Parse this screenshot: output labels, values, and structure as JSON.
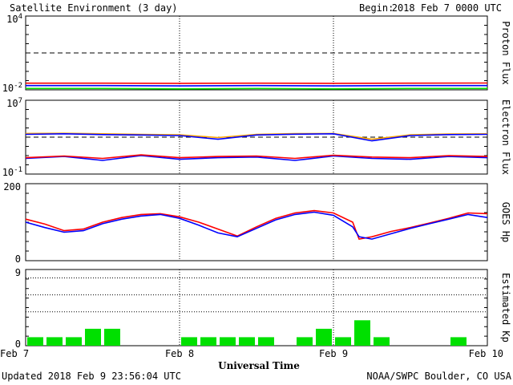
{
  "header": {
    "title": "Satellite Environment (3 day)",
    "begin_label": "Begin:",
    "begin_value": "2018 Feb 7 0000 UTC"
  },
  "footer": {
    "updated": "Updated 2018 Feb  9 23:56:04 UTC",
    "credit": "NOAA/SWPC Boulder, CO USA"
  },
  "chart_data": [
    {
      "type": "line",
      "title": "",
      "ylabel": "Proton Flux",
      "y_scale": "log",
      "ylim": [
        0.01,
        10000
      ],
      "y_tick_labels": [
        {
          "base": "10",
          "exp": "4"
        },
        {
          "base": "10",
          "exp": "-2"
        }
      ],
      "threshold": 10,
      "x": [
        0,
        12,
        24,
        36,
        48,
        60,
        72
      ],
      "series": [
        {
          "color": "#ff0000",
          "values": [
            0.035,
            0.035,
            0.034,
            0.035,
            0.034,
            0.035,
            0.036
          ]
        },
        {
          "color": "#0000ff",
          "values": [
            0.022,
            0.022,
            0.021,
            0.022,
            0.021,
            0.022,
            0.022
          ]
        },
        {
          "color": "#00e000",
          "values": [
            0.013,
            0.013,
            0.012,
            0.013,
            0.012,
            0.013,
            0.013
          ]
        }
      ]
    },
    {
      "type": "line",
      "title": "",
      "ylabel": "Electron Flux",
      "y_scale": "log",
      "ylim": [
        0.1,
        10000000
      ],
      "y_tick_labels": [
        {
          "base": "10",
          "exp": "7"
        },
        {
          "base": "10",
          "exp": "-1"
        }
      ],
      "threshold": 1000,
      "x": [
        0,
        6,
        12,
        18,
        24,
        30,
        36,
        42,
        48,
        54,
        60,
        66,
        72
      ],
      "series": [
        {
          "color": "#ffa500",
          "values": [
            2500,
            2600,
            2300,
            2000,
            1800,
            900,
            2000,
            2400,
            2500,
            600,
            1800,
            2200,
            2300
          ]
        },
        {
          "color": "#0000ff",
          "values": [
            2000,
            2300,
            1900,
            1700,
            1500,
            600,
            1700,
            2100,
            2300,
            400,
            1500,
            1900,
            2000
          ]
        },
        {
          "color": "#0000ff",
          "values": [
            5,
            8,
            3,
            10,
            4,
            6,
            7,
            3,
            9,
            5,
            4,
            8,
            6
          ]
        },
        {
          "color": "#ff0000",
          "values": [
            6,
            9,
            5,
            12,
            6,
            8,
            9,
            5,
            11,
            7,
            6,
            10,
            8
          ]
        }
      ]
    },
    {
      "type": "line",
      "title": "",
      "ylabel": "GOES Hp",
      "ylim": [
        0,
        200
      ],
      "y_tick_labels": [
        "200",
        "0"
      ],
      "x": [
        0,
        3,
        6,
        9,
        12,
        15,
        18,
        21,
        24,
        27,
        30,
        33,
        36,
        39,
        42,
        45,
        48,
        51,
        52,
        54,
        57,
        60,
        63,
        66,
        69,
        72
      ],
      "series": [
        {
          "color": "#ff0000",
          "values": [
            108,
            95,
            78,
            82,
            100,
            112,
            120,
            122,
            114,
            100,
            82,
            64,
            88,
            110,
            124,
            130,
            124,
            100,
            56,
            62,
            76,
            86,
            98,
            110,
            124,
            122
          ]
        },
        {
          "color": "#0000ff",
          "values": [
            100,
            86,
            74,
            78,
            96,
            108,
            116,
            120,
            110,
            92,
            72,
            62,
            84,
            106,
            120,
            126,
            118,
            88,
            62,
            56,
            70,
            84,
            96,
            108,
            120,
            112
          ]
        }
      ]
    },
    {
      "type": "bar",
      "title": "",
      "ylabel": "Estimated Kp",
      "ylim": [
        0,
        9
      ],
      "y_tick_labels": [
        "9",
        "0"
      ],
      "bar_hours": 3,
      "color": "#00e000",
      "values": [
        1,
        1,
        1,
        2,
        2,
        0,
        0,
        0,
        1,
        1,
        1,
        1,
        1,
        0,
        1,
        2,
        1,
        3,
        1,
        0,
        0,
        0,
        1,
        0
      ]
    }
  ],
  "x_axis": {
    "label": "Universal Time",
    "ticks": [
      {
        "hour": 0,
        "label": "Feb 7"
      },
      {
        "hour": 24,
        "label": "Feb 8"
      },
      {
        "hour": 48,
        "label": "Feb 9"
      },
      {
        "hour": 72,
        "label": "Feb 10"
      }
    ],
    "hours_total": 72
  }
}
